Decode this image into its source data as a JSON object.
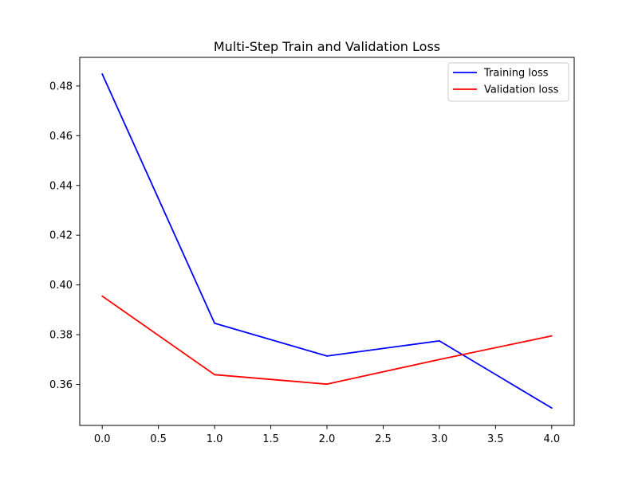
{
  "chart_data": {
    "type": "line",
    "title": "Multi-Step Train and Validation Loss",
    "xlabel": "",
    "ylabel": "",
    "x": [
      0,
      1,
      2,
      3,
      4
    ],
    "xlim": [
      -0.2,
      4.2
    ],
    "ylim": [
      0.3435,
      0.4915
    ],
    "xticks": [
      0.0,
      0.5,
      1.0,
      1.5,
      2.0,
      2.5,
      3.0,
      3.5,
      4.0
    ],
    "xtick_labels": [
      "0.0",
      "0.5",
      "1.0",
      "1.5",
      "2.0",
      "2.5",
      "3.0",
      "3.5",
      "4.0"
    ],
    "yticks": [
      0.36,
      0.38,
      0.4,
      0.42,
      0.44,
      0.46,
      0.48
    ],
    "ytick_labels": [
      "0.36",
      "0.38",
      "0.40",
      "0.42",
      "0.44",
      "0.46",
      "0.48"
    ],
    "grid": false,
    "legend_position": "top-right",
    "series": [
      {
        "name": "Training loss",
        "color": "#0000ff",
        "values": [
          0.4848,
          0.3846,
          0.3714,
          0.3775,
          0.3505
        ]
      },
      {
        "name": "Validation loss",
        "color": "#ff0000",
        "values": [
          0.3955,
          0.3639,
          0.3601,
          0.37,
          0.3795
        ]
      }
    ]
  }
}
